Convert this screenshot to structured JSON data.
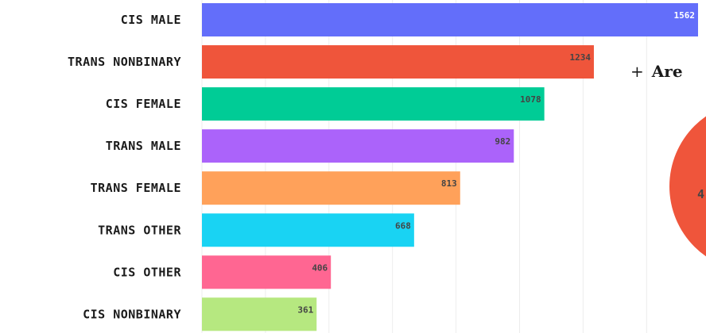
{
  "chart_data": {
    "type": "bar",
    "orientation": "horizontal",
    "categories": [
      "CIS MALE",
      "TRANS NONBINARY",
      "CIS FEMALE",
      "TRANS MALE",
      "TRANS FEMALE",
      "TRANS OTHER",
      "CIS OTHER",
      "CIS NONBINARY"
    ],
    "values": [
      1562,
      1234,
      1078,
      982,
      813,
      668,
      406,
      361
    ],
    "colors": [
      "#636efa",
      "#ef553b",
      "#00cc96",
      "#ab63fa",
      "#ffa15a",
      "#19d3f3",
      "#ff6692",
      "#b6e880"
    ],
    "value_label_colors": [
      "#ffffff",
      "#444444",
      "#444444",
      "#444444",
      "#444444",
      "#444444",
      "#444444",
      "#444444"
    ],
    "title": "",
    "xlabel": "",
    "ylabel": "",
    "xlim": [
      0,
      1562
    ],
    "grid": true
  },
  "side_panel": {
    "plus": "+",
    "heading": "Are",
    "pie_partial_text": "4",
    "pie_color": "#ef553b"
  }
}
